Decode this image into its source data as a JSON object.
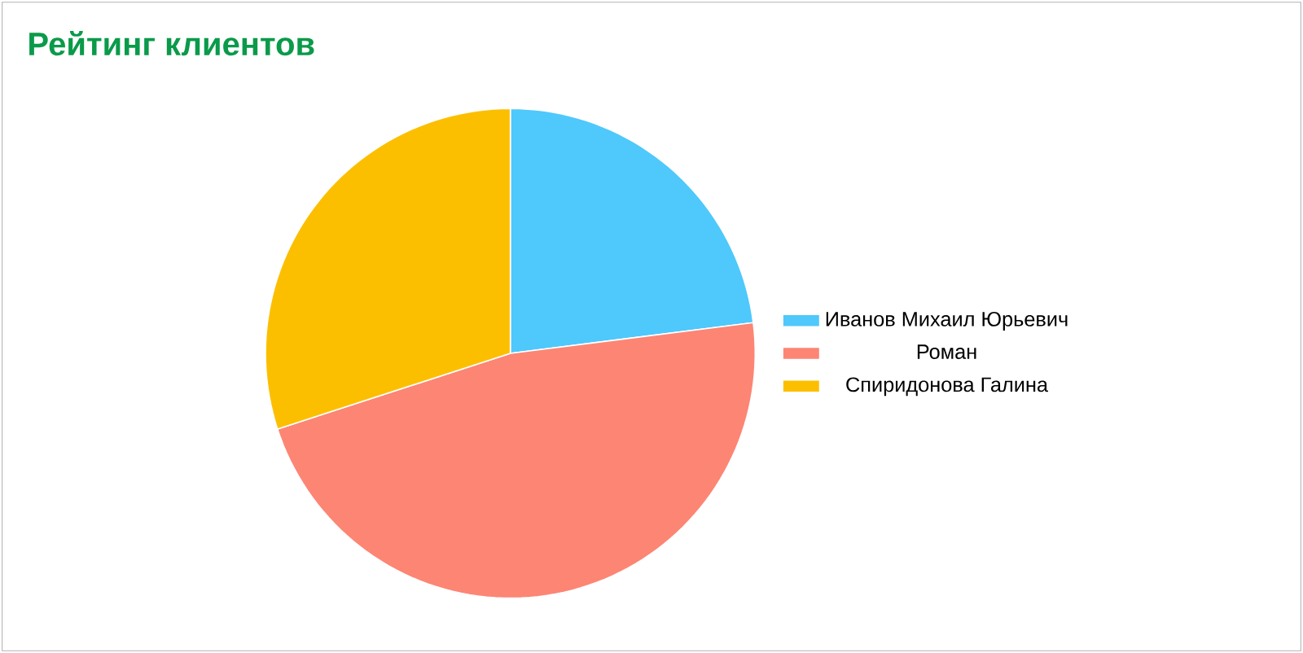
{
  "chart_data": {
    "type": "pie",
    "title": "Рейтинг клиентов",
    "categories": [
      "Иванов Михаил Юрьевич",
      "Роман",
      "Спиридонова Галина"
    ],
    "values": [
      23,
      47,
      30
    ],
    "colors": [
      "#4fc8fc",
      "#fd8574",
      "#fcbf00"
    ],
    "legend": "right"
  }
}
